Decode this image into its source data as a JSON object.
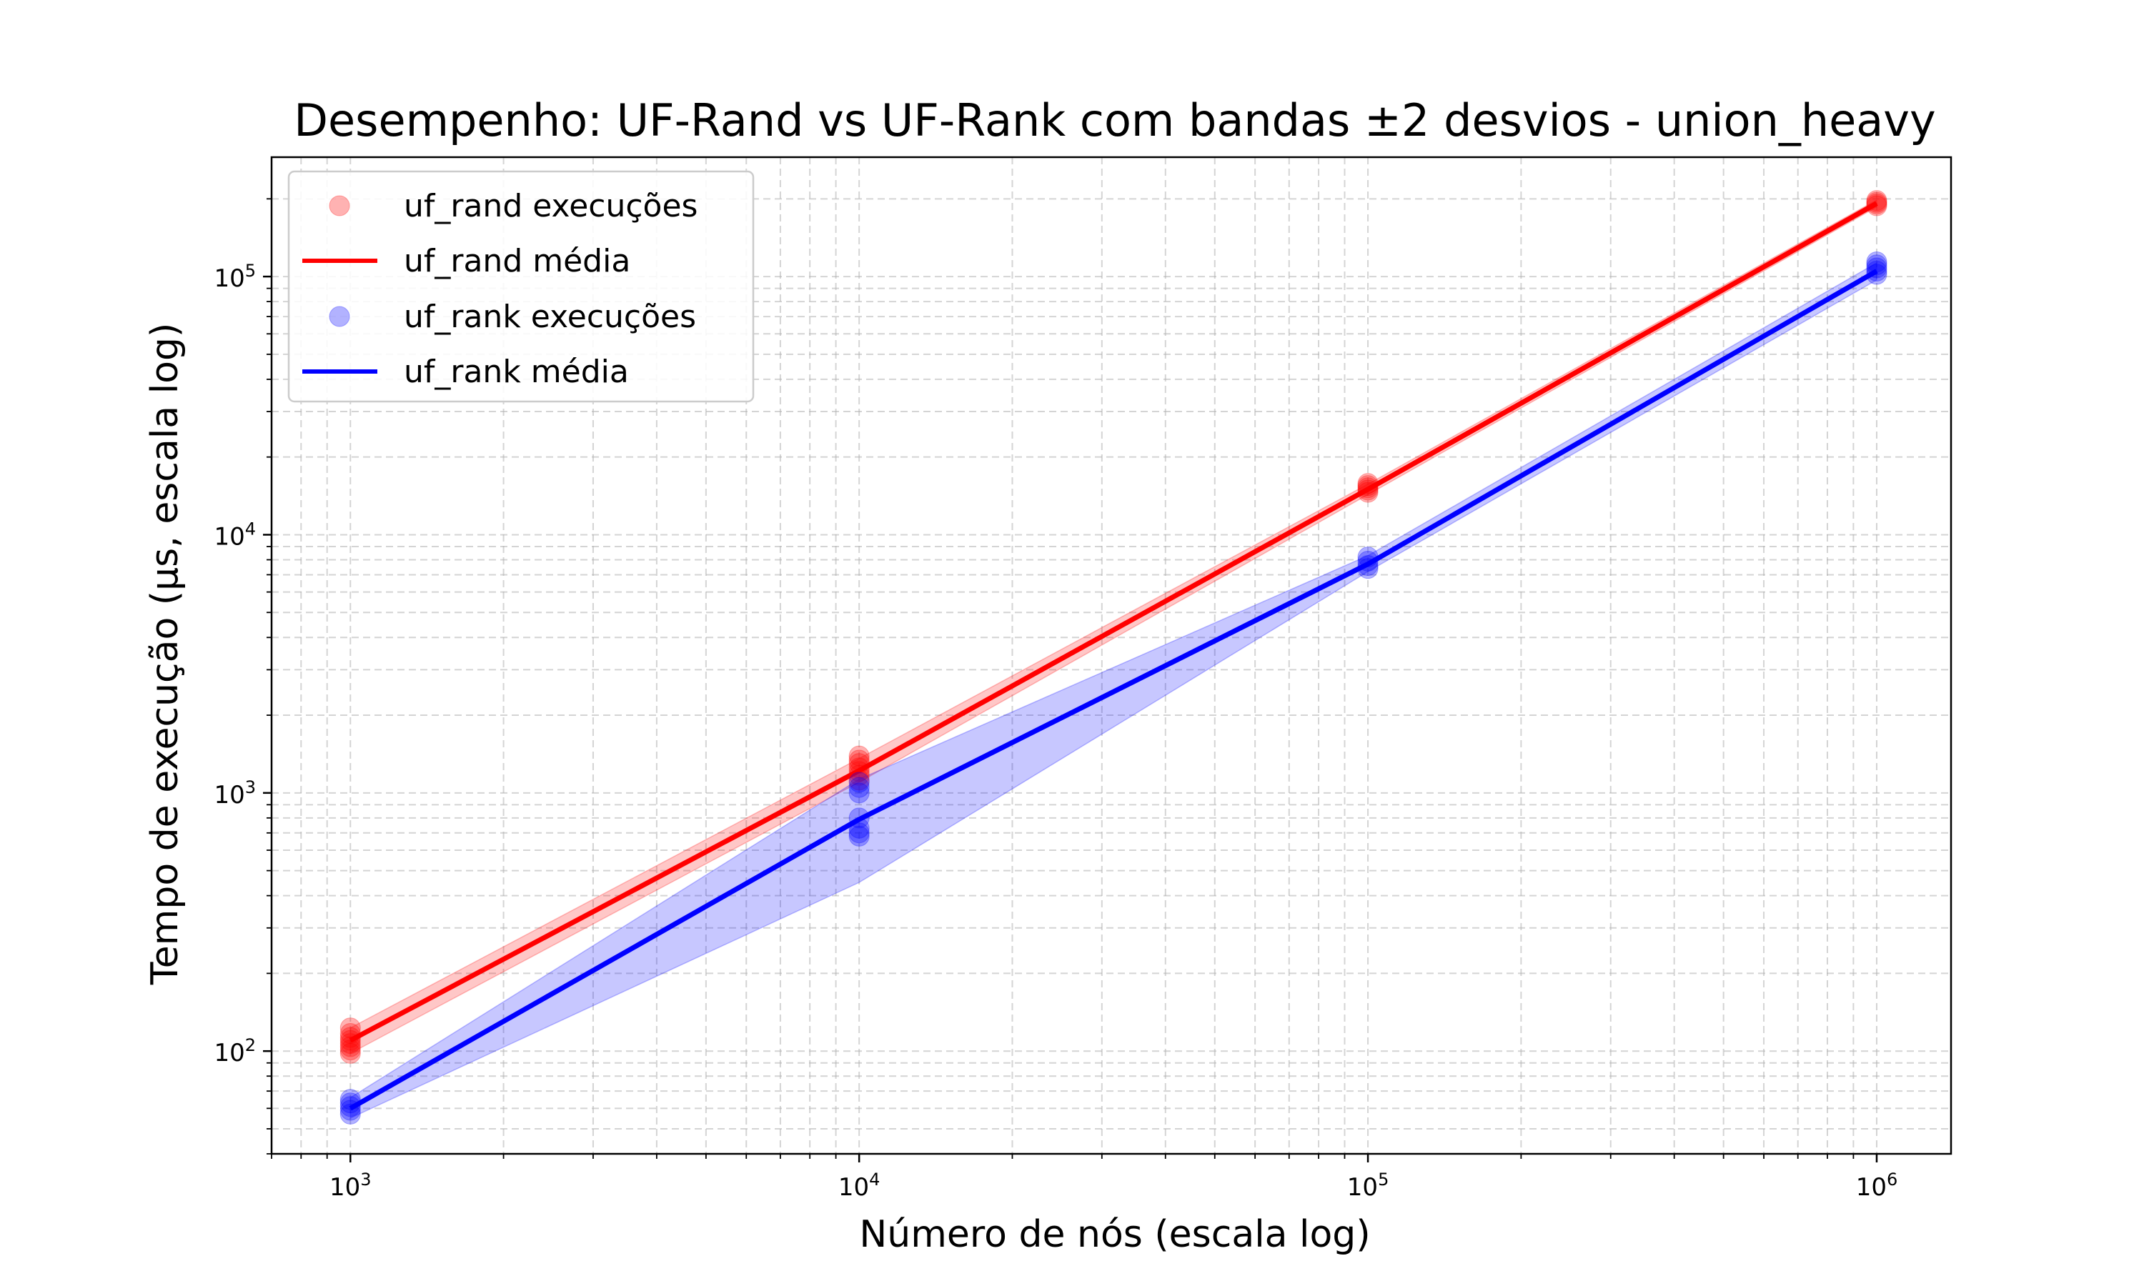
{
  "chart_data": {
    "type": "line",
    "title": "Desempenho: UF-Rand vs UF-Rank com bandas ±2 desvios - union_heavy",
    "xlabel": "Número de nós (escala log)",
    "ylabel": "Tempo de execução (µs, escala log)",
    "xscale": "log",
    "yscale": "log",
    "xlim": [
      700,
      1400000
    ],
    "ylim": [
      40,
      290000
    ],
    "grid": true,
    "legend_position": "top-left",
    "x": [
      1000,
      10000,
      100000,
      1000000
    ],
    "x_tick_labels": [
      {
        "base": "10",
        "exp": "3",
        "value": 1000
      },
      {
        "base": "10",
        "exp": "4",
        "value": 10000
      },
      {
        "base": "10",
        "exp": "5",
        "value": 100000
      },
      {
        "base": "10",
        "exp": "6",
        "value": 1000000
      }
    ],
    "y_tick_labels": [
      {
        "base": "10",
        "exp": "2",
        "value": 100
      },
      {
        "base": "10",
        "exp": "3",
        "value": 1000
      },
      {
        "base": "10",
        "exp": "4",
        "value": 10000
      },
      {
        "base": "10",
        "exp": "5",
        "value": 100000
      }
    ],
    "series": [
      {
        "name": "uf_rand média",
        "scatter_name": "uf_rand execuções",
        "color": "#ff0000",
        "mean": [
          110,
          1220,
          15000,
          192000
        ],
        "band_low": [
          98,
          1100,
          14300,
          186000
        ],
        "band_high": [
          123,
          1360,
          15700,
          198000
        ],
        "runs": [
          [
            98,
            101,
            104,
            107,
            110,
            113,
            117,
            123
          ],
          [
            1120,
            1170,
            1210,
            1250,
            1300,
            1340,
            1390
          ],
          [
            14600,
            14900,
            15200,
            15500,
            15800
          ],
          [
            188000,
            191000,
            194000,
            197000
          ]
        ]
      },
      {
        "name": "uf_rank média",
        "scatter_name": "uf_rank execuções",
        "color": "#0000ff",
        "mean": [
          60,
          790,
          7700,
          105000
        ],
        "band_low": [
          55,
          450,
          7200,
          97000
        ],
        "band_high": [
          66,
          1130,
          8300,
          113000
        ],
        "runs": [
          [
            57,
            59,
            61,
            63,
            65
          ],
          [
            680,
            700,
            730,
            800,
            1000,
            1050,
            1100
          ],
          [
            7400,
            7600,
            7900,
            8200
          ],
          [
            102000,
            105000,
            108000,
            111000,
            114000
          ]
        ]
      }
    ]
  }
}
